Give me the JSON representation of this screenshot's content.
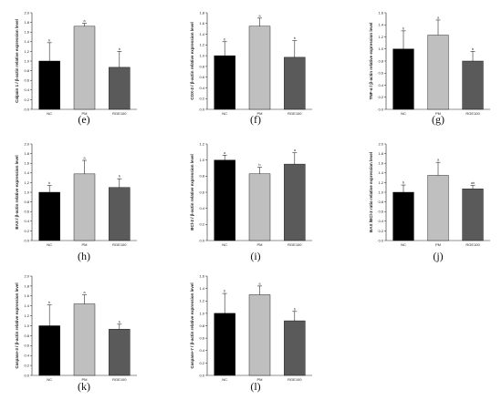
{
  "chart_data": [
    {
      "panel": "(e)",
      "type": "bar",
      "ylabel": "Calpain 1 / β-actin relative expression level",
      "categories": [
        "NC",
        "PM",
        "RGE100"
      ],
      "values": [
        1.0,
        1.72,
        0.87
      ],
      "errors": [
        0.38,
        0.06,
        0.33
      ],
      "sig": [
        "b",
        "a",
        "b"
      ],
      "ylim": [
        0,
        2.0
      ],
      "ticks": [
        "0.0",
        "0.2",
        "0.4",
        "0.6",
        "0.8",
        "1.0",
        "1.2",
        "1.4",
        "1.6",
        "1.8",
        "2.0"
      ]
    },
    {
      "panel": "(f)",
      "type": "bar",
      "ylabel": "COX-2 / β-actin relative expression level",
      "categories": [
        "NC",
        "PM",
        "RGE100"
      ],
      "values": [
        1.0,
        1.55,
        0.97
      ],
      "errors": [
        0.26,
        0.15,
        0.31
      ],
      "sig": [
        "b",
        "a",
        "b"
      ],
      "ylim": [
        0,
        1.8
      ],
      "ticks": [
        "0.0",
        "0.2",
        "0.4",
        "0.6",
        "0.8",
        "1.0",
        "1.2",
        "1.4",
        "1.6",
        "1.8"
      ]
    },
    {
      "panel": "(g)",
      "type": "bar",
      "ylabel": "TNF-α / β-actin relative expression level",
      "categories": [
        "NC",
        "PM",
        "RGE100"
      ],
      "values": [
        1.0,
        1.23,
        0.8
      ],
      "errors": [
        0.3,
        0.25,
        0.16
      ],
      "sig": [
        "b",
        "a",
        "b"
      ],
      "ylim": [
        0,
        1.6
      ],
      "ticks": [
        "0.0",
        "0.2",
        "0.4",
        "0.6",
        "0.8",
        "1.0",
        "1.2",
        "1.4",
        "1.6"
      ]
    },
    {
      "panel": "(h)",
      "type": "bar",
      "ylabel": "BAX / β-actin relative expression level",
      "categories": [
        "NC",
        "PM",
        "RGE100"
      ],
      "values": [
        1.0,
        1.38,
        1.1
      ],
      "errors": [
        0.14,
        0.28,
        0.18
      ],
      "sig": [
        "b",
        "a",
        "b"
      ],
      "ylim": [
        0,
        2.0
      ],
      "ticks": [
        "0.0",
        "0.2",
        "0.4",
        "0.6",
        "0.8",
        "1.0",
        "1.2",
        "1.4",
        "1.6",
        "1.8",
        "2.0"
      ]
    },
    {
      "panel": "(i)",
      "type": "bar",
      "ylabel": "BCl-2 / β-actin relative expression level",
      "categories": [
        "NC",
        "PM",
        "RGE100"
      ],
      "values": [
        1.0,
        0.83,
        0.95
      ],
      "errors": [
        0.06,
        0.08,
        0.14
      ],
      "sig": [
        "a",
        "b",
        "a"
      ],
      "ylim": [
        0,
        1.2
      ],
      "ticks": [
        "0.0",
        "0.2",
        "0.4",
        "0.6",
        "0.8",
        "1.0",
        "1.2"
      ]
    },
    {
      "panel": "(j)",
      "type": "bar",
      "ylabel": "BAX /BCl-2 ratio relative expression level",
      "categories": [
        "NC",
        "PM",
        "RGE100"
      ],
      "values": [
        1.0,
        1.35,
        1.07
      ],
      "errors": [
        0.15,
        0.27,
        0.07
      ],
      "sig": [
        "b",
        "a",
        "ab"
      ],
      "ylim": [
        0,
        2.0
      ],
      "ticks": [
        "0.0",
        "0.2",
        "0.4",
        "0.6",
        "0.8",
        "1.0",
        "1.2",
        "1.4",
        "1.6",
        "1.8",
        "2.0"
      ]
    },
    {
      "panel": "(k)",
      "type": "bar",
      "ylabel": "Caspase-3 / β-actin relative expression level",
      "categories": [
        "NC",
        "PM",
        "RGE100"
      ],
      "values": [
        1.0,
        1.44,
        0.93
      ],
      "errors": [
        0.42,
        0.18,
        0.1
      ],
      "sig": [
        "b",
        "a",
        "b"
      ],
      "ylim": [
        0,
        2.0
      ],
      "ticks": [
        "0.0",
        "0.2",
        "0.4",
        "0.6",
        "0.8",
        "1.0",
        "1.2",
        "1.4",
        "1.6",
        "1.8",
        "2.0"
      ]
    },
    {
      "panel": "(l)",
      "type": "bar",
      "ylabel": "Caspase-7 / β-actin relative expression level",
      "categories": [
        "NC",
        "PM",
        "RGE100"
      ],
      "values": [
        1.0,
        1.3,
        0.88
      ],
      "errors": [
        0.32,
        0.14,
        0.15
      ],
      "sig": [
        "b",
        "a",
        "b"
      ],
      "ylim": [
        0,
        1.6
      ],
      "ticks": [
        "0.0",
        "0.2",
        "0.4",
        "0.6",
        "0.8",
        "1.0",
        "1.2",
        "1.4",
        "1.6"
      ]
    }
  ],
  "colors": {
    "NC": "#000000",
    "PM": "#bfbfbf",
    "RGE100": "#5a5a5a",
    "axis": "#222222"
  }
}
